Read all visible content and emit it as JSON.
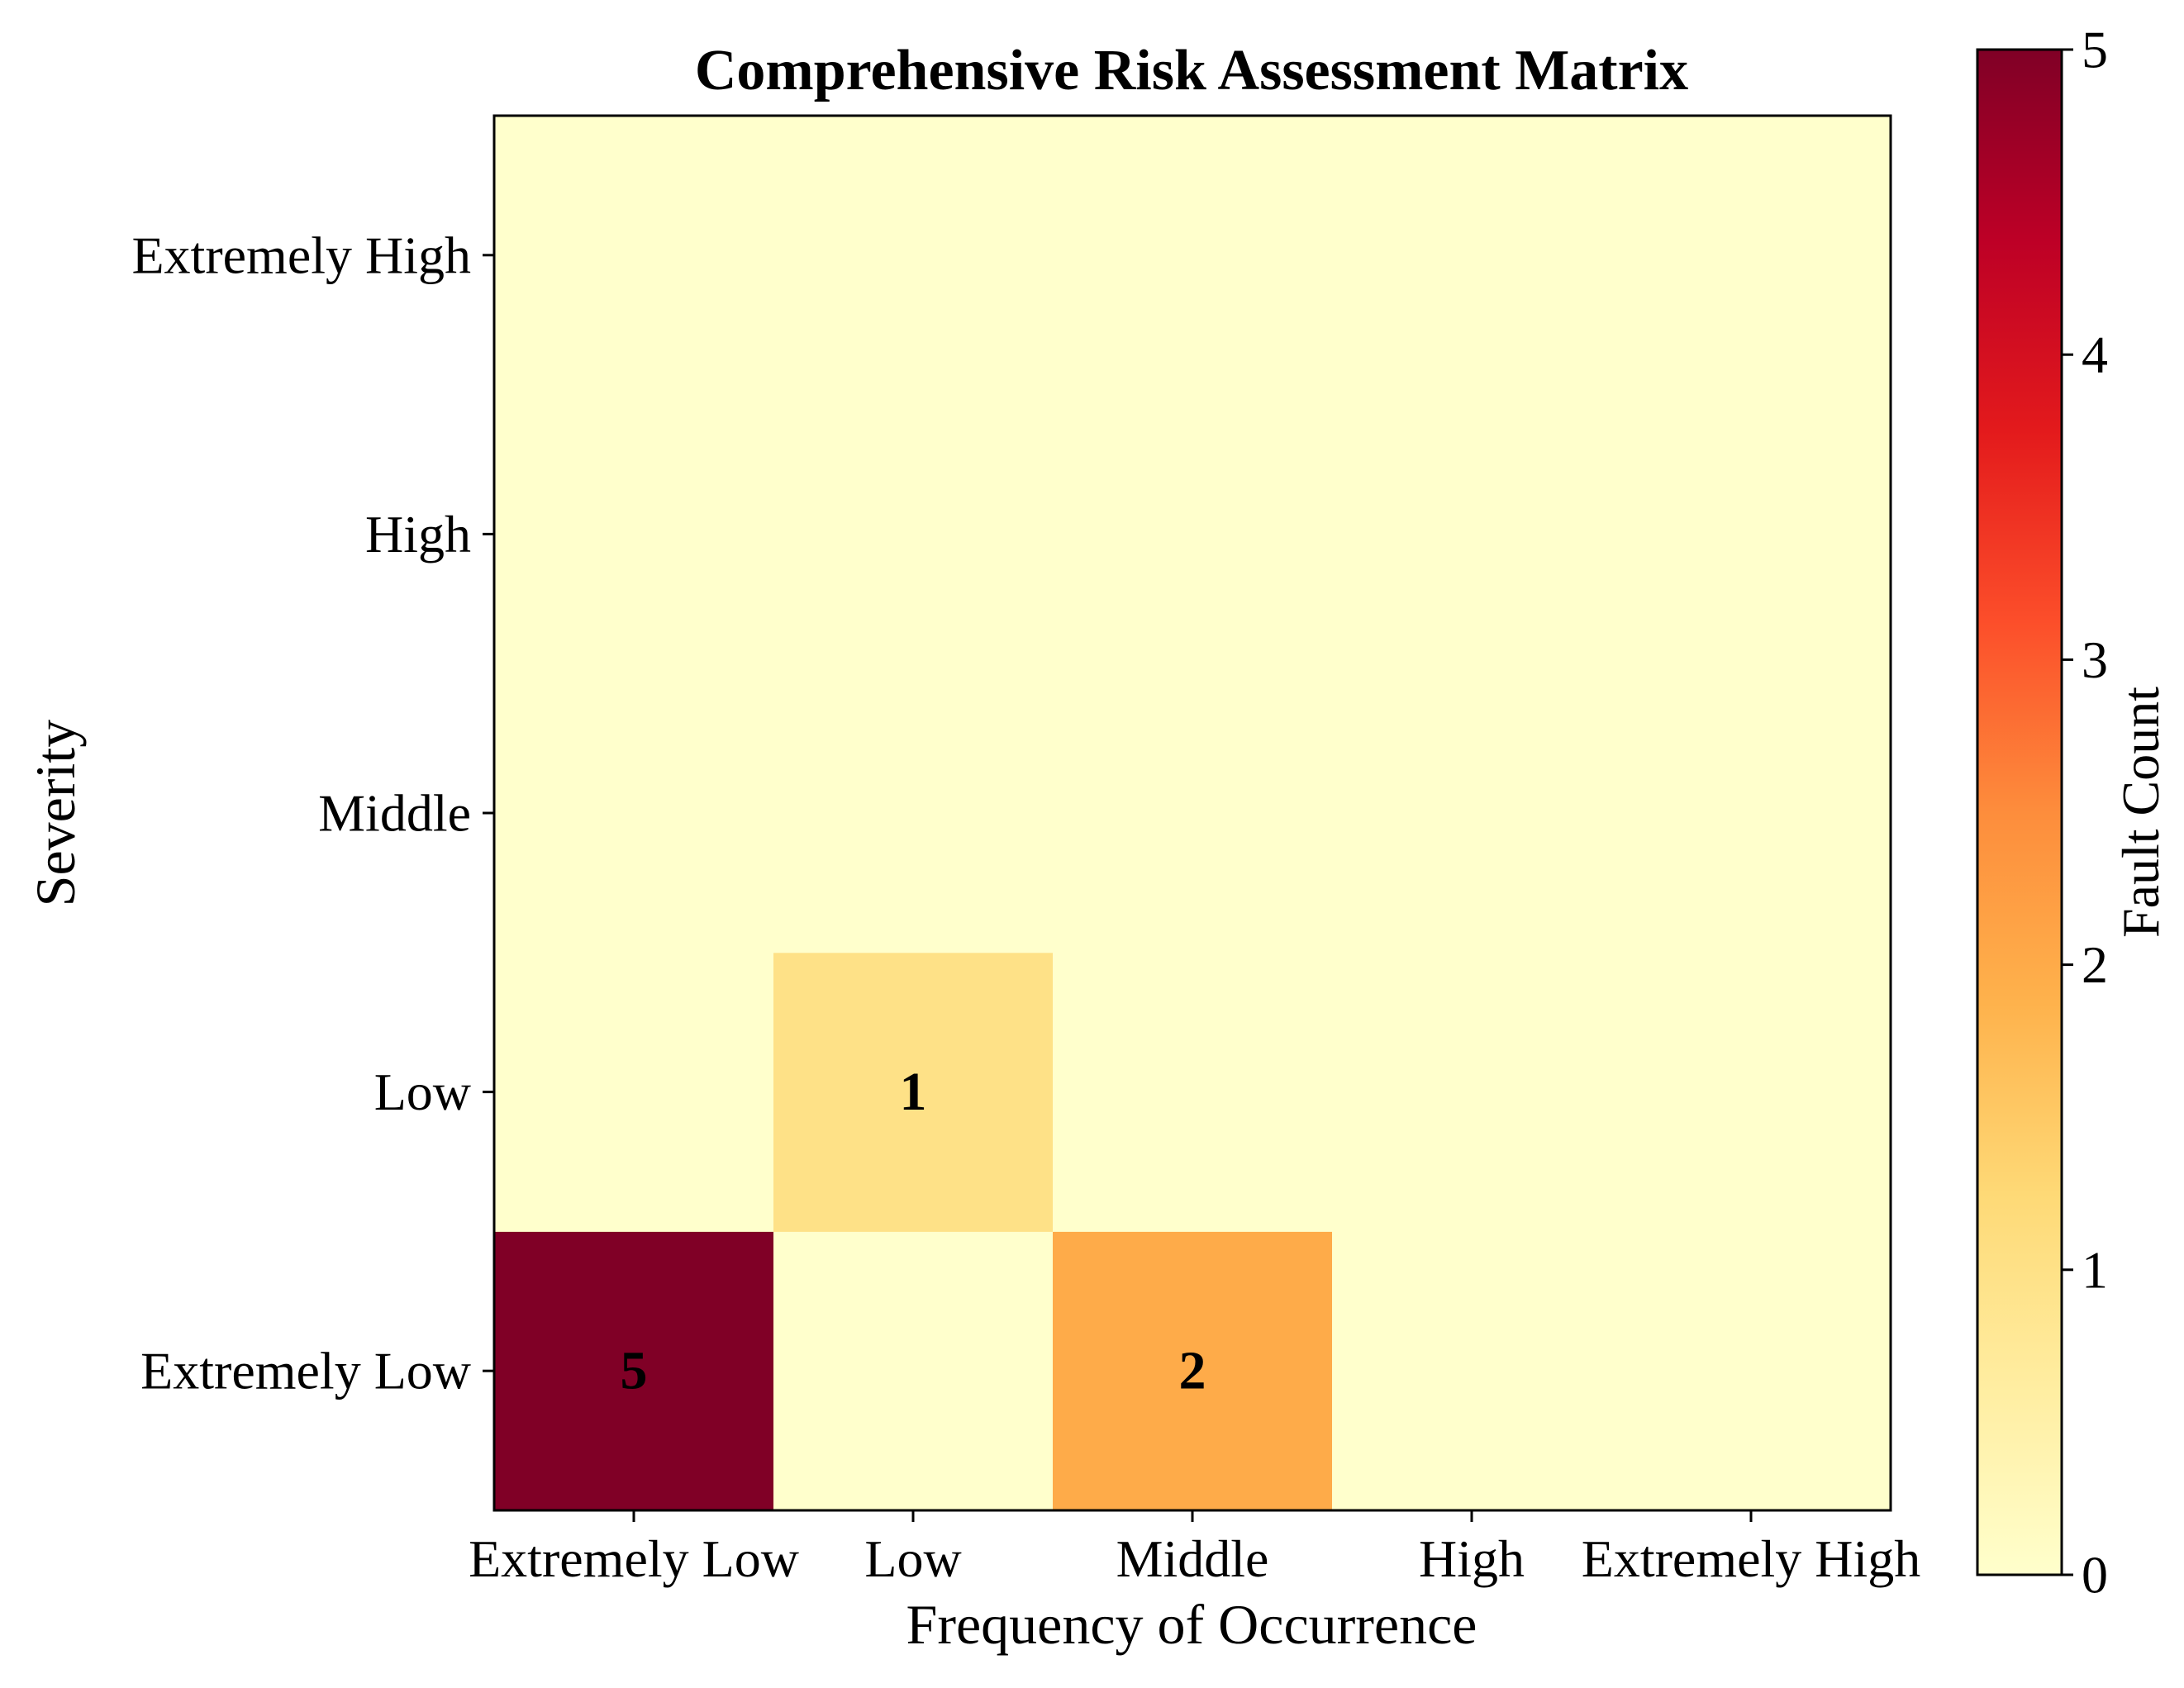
{
  "chart_data": {
    "type": "heatmap",
    "title": "Comprehensive Risk Assessment Matrix",
    "xlabel": "Frequency of Occurrence",
    "ylabel": "Severity",
    "x_categories": [
      "Extremely Low",
      "Low",
      "Middle",
      "High",
      "Extremely High"
    ],
    "y_categories": [
      "Extremely Low",
      "Low",
      "Middle",
      "High",
      "Extremely High"
    ],
    "values": [
      [
        5,
        0,
        2,
        0,
        0
      ],
      [
        0,
        1,
        0,
        0,
        0
      ],
      [
        0,
        0,
        0,
        0,
        0
      ],
      [
        0,
        0,
        0,
        0,
        0
      ],
      [
        0,
        0,
        0,
        0,
        0
      ]
    ],
    "annotate_nonzero": true,
    "colormap": "YlOrRd",
    "vmin": 0,
    "vmax": 5,
    "colorbar": {
      "label": "Fault Count",
      "ticks": [
        0,
        1,
        2,
        3,
        4,
        5
      ]
    },
    "colors": {
      "scale": [
        "#ffffcc",
        "#ffeda0",
        "#fed976",
        "#feb24c",
        "#fd8d3c",
        "#fc4e2a",
        "#e31a1c",
        "#bd0026",
        "#800026"
      ]
    }
  }
}
